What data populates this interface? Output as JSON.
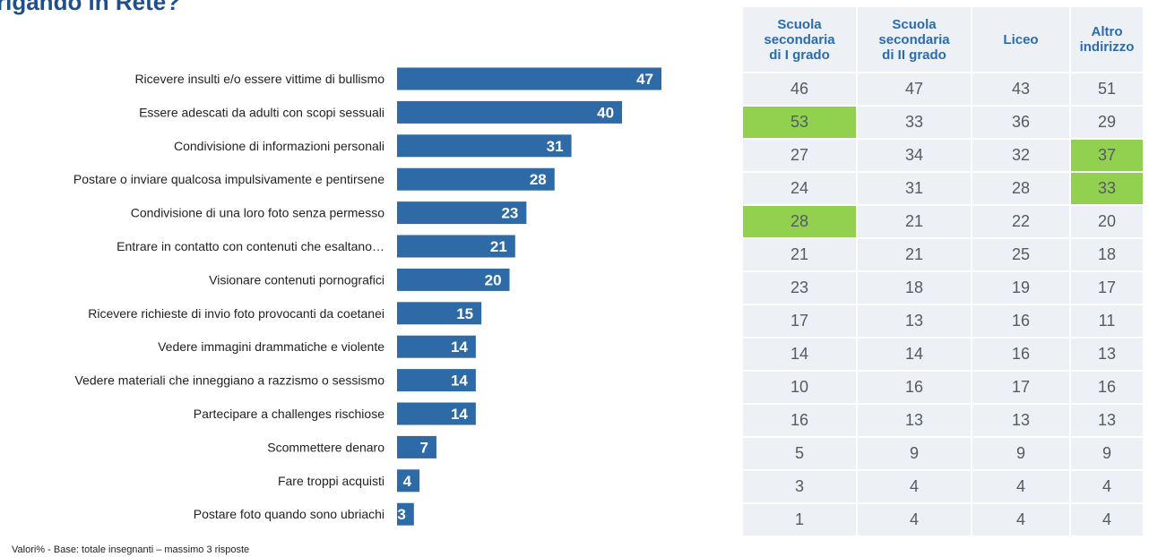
{
  "page": {
    "title": "rigando in Rete?",
    "footnote": "Valori% - Base: totale insegnanti – massimo 3 risposte"
  },
  "colors": {
    "bar": "#2e6aa6",
    "title": "#1f4e8c",
    "table_header": "#2b6cb0",
    "table_bg": "#edf0f4",
    "highlight": "#92d050"
  },
  "chart_data": {
    "type": "bar",
    "orientation": "horizontal",
    "categories": [
      "Ricevere insulti e/o essere vittime di bullismo",
      "Essere adescati da adulti con scopi sessuali",
      "Condivisione di informazioni personali",
      "Postare o inviare qualcosa impulsivamente e pentirsene",
      "Condivisione di una loro foto senza permesso",
      "Entrare in contatto con contenuti che esaltano…",
      "Visionare contenuti pornografici",
      "Ricevere richieste di invio foto provocanti da coetanei",
      "Vedere immagini drammatiche e violente",
      "Vedere materiali che inneggiano a razzismo o sessismo",
      "Partecipare a challenges rischiose",
      "Scommettere denaro",
      "Fare troppi acquisti",
      "Postare foto quando sono ubriachi"
    ],
    "values": [
      47,
      40,
      31,
      28,
      23,
      21,
      20,
      15,
      14,
      14,
      14,
      7,
      4,
      3
    ],
    "xlim": [
      0,
      47
    ],
    "grid": false,
    "legend": "none"
  },
  "table": {
    "headers": [
      [
        "Scuola",
        "secondaria",
        "di I grado"
      ],
      [
        "Scuola",
        "secondaria",
        "di II grado"
      ],
      [
        "Liceo"
      ],
      [
        "Altro",
        "indirizzo"
      ]
    ],
    "rows": [
      [
        46,
        47,
        43,
        51
      ],
      [
        53,
        33,
        36,
        29
      ],
      [
        27,
        34,
        32,
        37
      ],
      [
        24,
        31,
        28,
        33
      ],
      [
        28,
        21,
        22,
        20
      ],
      [
        21,
        21,
        25,
        18
      ],
      [
        23,
        18,
        19,
        17
      ],
      [
        17,
        13,
        16,
        11
      ],
      [
        14,
        14,
        16,
        13
      ],
      [
        10,
        16,
        17,
        16
      ],
      [
        16,
        13,
        13,
        13
      ],
      [
        5,
        9,
        9,
        9
      ],
      [
        3,
        4,
        4,
        4
      ],
      [
        1,
        4,
        4,
        4
      ]
    ],
    "highlighted": [
      [
        1,
        0
      ],
      [
        2,
        3
      ],
      [
        3,
        3
      ],
      [
        4,
        0
      ]
    ]
  }
}
